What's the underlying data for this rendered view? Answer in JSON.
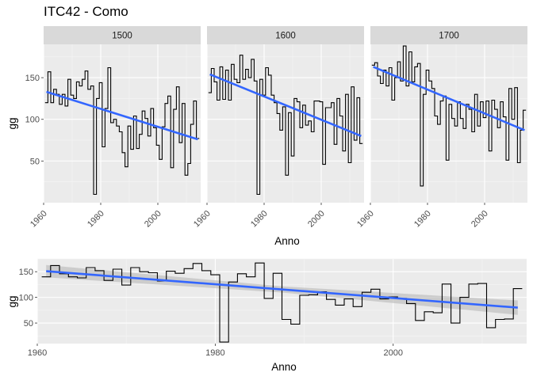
{
  "title": "ITC42 - Como",
  "chart_data": [
    {
      "type": "line",
      "subtype": "step with linear trend, faceted",
      "xlabel": "Anno",
      "ylabel": "gg",
      "xlim": [
        1960,
        2015
      ],
      "ylim": [
        0,
        190
      ],
      "xticks": [
        1960,
        1980,
        2000
      ],
      "yticks": [
        50,
        100,
        150
      ],
      "facets": [
        {
          "name": "1500",
          "x": [
            1961,
            1962,
            1963,
            1964,
            1965,
            1966,
            1967,
            1968,
            1969,
            1970,
            1971,
            1972,
            1973,
            1974,
            1975,
            1976,
            1977,
            1978,
            1979,
            1980,
            1981,
            1982,
            1983,
            1984,
            1985,
            1986,
            1987,
            1988,
            1989,
            1990,
            1991,
            1992,
            1993,
            1994,
            1995,
            1996,
            1997,
            1998,
            1999,
            2000,
            2001,
            2002,
            2003,
            2004,
            2005,
            2006,
            2007,
            2008,
            2009,
            2010,
            2011,
            2012,
            2013,
            2014
          ],
          "y": [
            120,
            157,
            120,
            136,
            130,
            118,
            130,
            116,
            148,
            129,
            125,
            145,
            140,
            148,
            158,
            136,
            140,
            10,
            125,
            144,
            67,
            113,
            162,
            96,
            100,
            92,
            85,
            60,
            43,
            92,
            64,
            104,
            65,
            82,
            110,
            101,
            80,
            113,
            90,
            69,
            52,
            91,
            119,
            128,
            42,
            112,
            139,
            72,
            119,
            33,
            47,
            94,
            122,
            77
          ],
          "trend": [
            133,
            76
          ]
        },
        {
          "name": "1600",
          "x": [
            1961,
            1962,
            1963,
            1964,
            1965,
            1966,
            1967,
            1968,
            1969,
            1970,
            1971,
            1972,
            1973,
            1974,
            1975,
            1976,
            1977,
            1978,
            1979,
            1980,
            1981,
            1982,
            1983,
            1984,
            1985,
            1986,
            1987,
            1988,
            1989,
            1990,
            1991,
            1992,
            1993,
            1994,
            1995,
            1996,
            1997,
            1998,
            1999,
            2000,
            2001,
            2002,
            2003,
            2004,
            2005,
            2006,
            2007,
            2008,
            2009,
            2010,
            2011,
            2012,
            2013,
            2014
          ],
          "y": [
            132,
            161,
            145,
            123,
            163,
            124,
            159,
            123,
            166,
            148,
            144,
            177,
            148,
            160,
            150,
            172,
            146,
            10,
            148,
            129,
            162,
            153,
            129,
            120,
            107,
            87,
            115,
            33,
            108,
            56,
            125,
            121,
            90,
            117,
            93,
            98,
            85,
            122,
            122,
            121,
            46,
            114,
            114,
            120,
            70,
            125,
            104,
            62,
            130,
            48,
            139,
            75,
            126,
            71
          ],
          "trend": [
            154,
            80
          ]
        },
        {
          "name": "1700",
          "x": [
            1961,
            1962,
            1963,
            1964,
            1965,
            1966,
            1967,
            1968,
            1969,
            1970,
            1971,
            1972,
            1973,
            1974,
            1975,
            1976,
            1977,
            1978,
            1979,
            1980,
            1981,
            1982,
            1983,
            1984,
            1985,
            1986,
            1987,
            1988,
            1989,
            1990,
            1991,
            1992,
            1993,
            1994,
            1995,
            1996,
            1997,
            1998,
            1999,
            2000,
            2001,
            2002,
            2003,
            2004,
            2005,
            2006,
            2007,
            2008,
            2009,
            2010,
            2011,
            2012,
            2013,
            2014
          ],
          "y": [
            165,
            168,
            152,
            143,
            159,
            140,
            162,
            123,
            150,
            169,
            146,
            188,
            140,
            181,
            145,
            163,
            167,
            20,
            130,
            159,
            146,
            137,
            104,
            94,
            122,
            128,
            51,
            118,
            101,
            92,
            121,
            101,
            89,
            118,
            112,
            85,
            130,
            92,
            121,
            102,
            122,
            62,
            123,
            112,
            90,
            121,
            103,
            51,
            137,
            100,
            138,
            48,
            87,
            111
          ],
          "trend": [
            163,
            87
          ]
        }
      ]
    },
    {
      "type": "line",
      "subtype": "step with linear trend and confidence band",
      "xlabel": "Anno",
      "ylabel": "gg",
      "xlim": [
        1960,
        2015
      ],
      "ylim": [
        10,
        175
      ],
      "xticks": [
        1960,
        1980,
        2000
      ],
      "yticks": [
        50,
        100,
        150
      ],
      "x": [
        1961,
        1962,
        1963,
        1964,
        1965,
        1966,
        1967,
        1968,
        1969,
        1970,
        1971,
        1972,
        1973,
        1974,
        1975,
        1976,
        1977,
        1978,
        1979,
        1980,
        1981,
        1982,
        1983,
        1984,
        1985,
        1986,
        1987,
        1988,
        1989,
        1990,
        1991,
        1992,
        1993,
        1994,
        1995,
        1996,
        1997,
        1998,
        1999,
        2000,
        2001,
        2002,
        2003,
        2004,
        2005,
        2006,
        2007,
        2008,
        2009,
        2010,
        2011,
        2012,
        2013,
        2014
      ],
      "y": [
        140,
        162,
        146,
        140,
        138,
        158,
        152,
        133,
        155,
        124,
        158,
        150,
        148,
        132,
        151,
        147,
        156,
        166,
        152,
        144,
        13,
        130,
        146,
        140,
        167,
        98,
        147,
        57,
        48,
        104,
        105,
        111,
        96,
        85,
        97,
        82,
        110,
        116,
        97,
        101,
        98,
        88,
        55,
        72,
        70,
        126,
        50,
        100,
        126,
        127,
        41,
        57,
        58,
        117
      ],
      "trend": [
        151,
        80
      ],
      "band_halfwidth": [
        12,
        6,
        14
      ]
    }
  ],
  "style": {
    "panel_bg": "#ebebeb",
    "grid_major": "#ffffff",
    "strip_bg": "#d9d9d9",
    "line_color": "#000000",
    "trend_color": "#3366ff",
    "band_color": "#bfbfbf"
  }
}
